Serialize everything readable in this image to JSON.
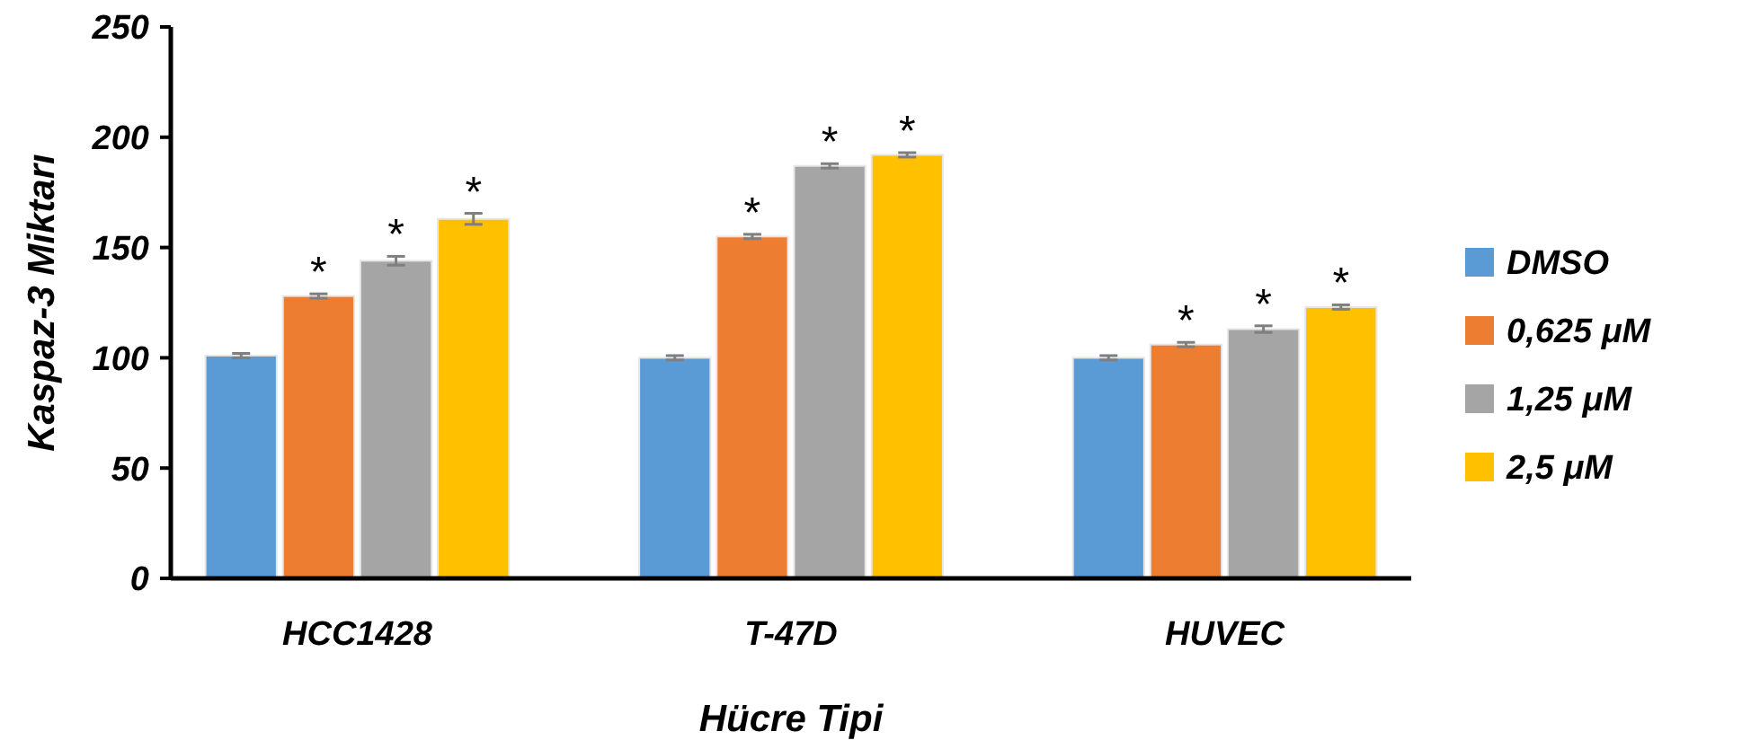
{
  "chart_data": {
    "type": "bar",
    "xlabel": "Hücre Tipi",
    "ylabel": "Kaspaz-3 Miktarı",
    "categories": [
      "HCC1428",
      "T-47D",
      "HUVEC"
    ],
    "series": [
      {
        "name": "DMSO",
        "color": "#5b9bd5",
        "values": [
          101,
          100,
          100
        ],
        "errors": [
          1,
          1,
          1
        ]
      },
      {
        "name": "0,625 μM",
        "color": "#ed7d31",
        "values": [
          128,
          155,
          106
        ],
        "errors": [
          1,
          1,
          1
        ],
        "value_labels": [
          "*",
          "*",
          "*"
        ]
      },
      {
        "name": "1,25 μM",
        "color": "#a5a5a5",
        "values": [
          144,
          187,
          113
        ],
        "errors": [
          2,
          1,
          1.5
        ],
        "value_labels": [
          "*",
          "*",
          "*"
        ]
      },
      {
        "name": "2,5 μM",
        "color": "#ffc000",
        "values": [
          163,
          192,
          123
        ],
        "errors": [
          2.5,
          1,
          1
        ],
        "value_labels": [
          "*",
          "*",
          "*"
        ]
      }
    ],
    "ylim": [
      0,
      250
    ],
    "yticks": [
      0,
      50,
      100,
      150,
      200,
      250
    ],
    "legend": "right",
    "grid": false
  }
}
